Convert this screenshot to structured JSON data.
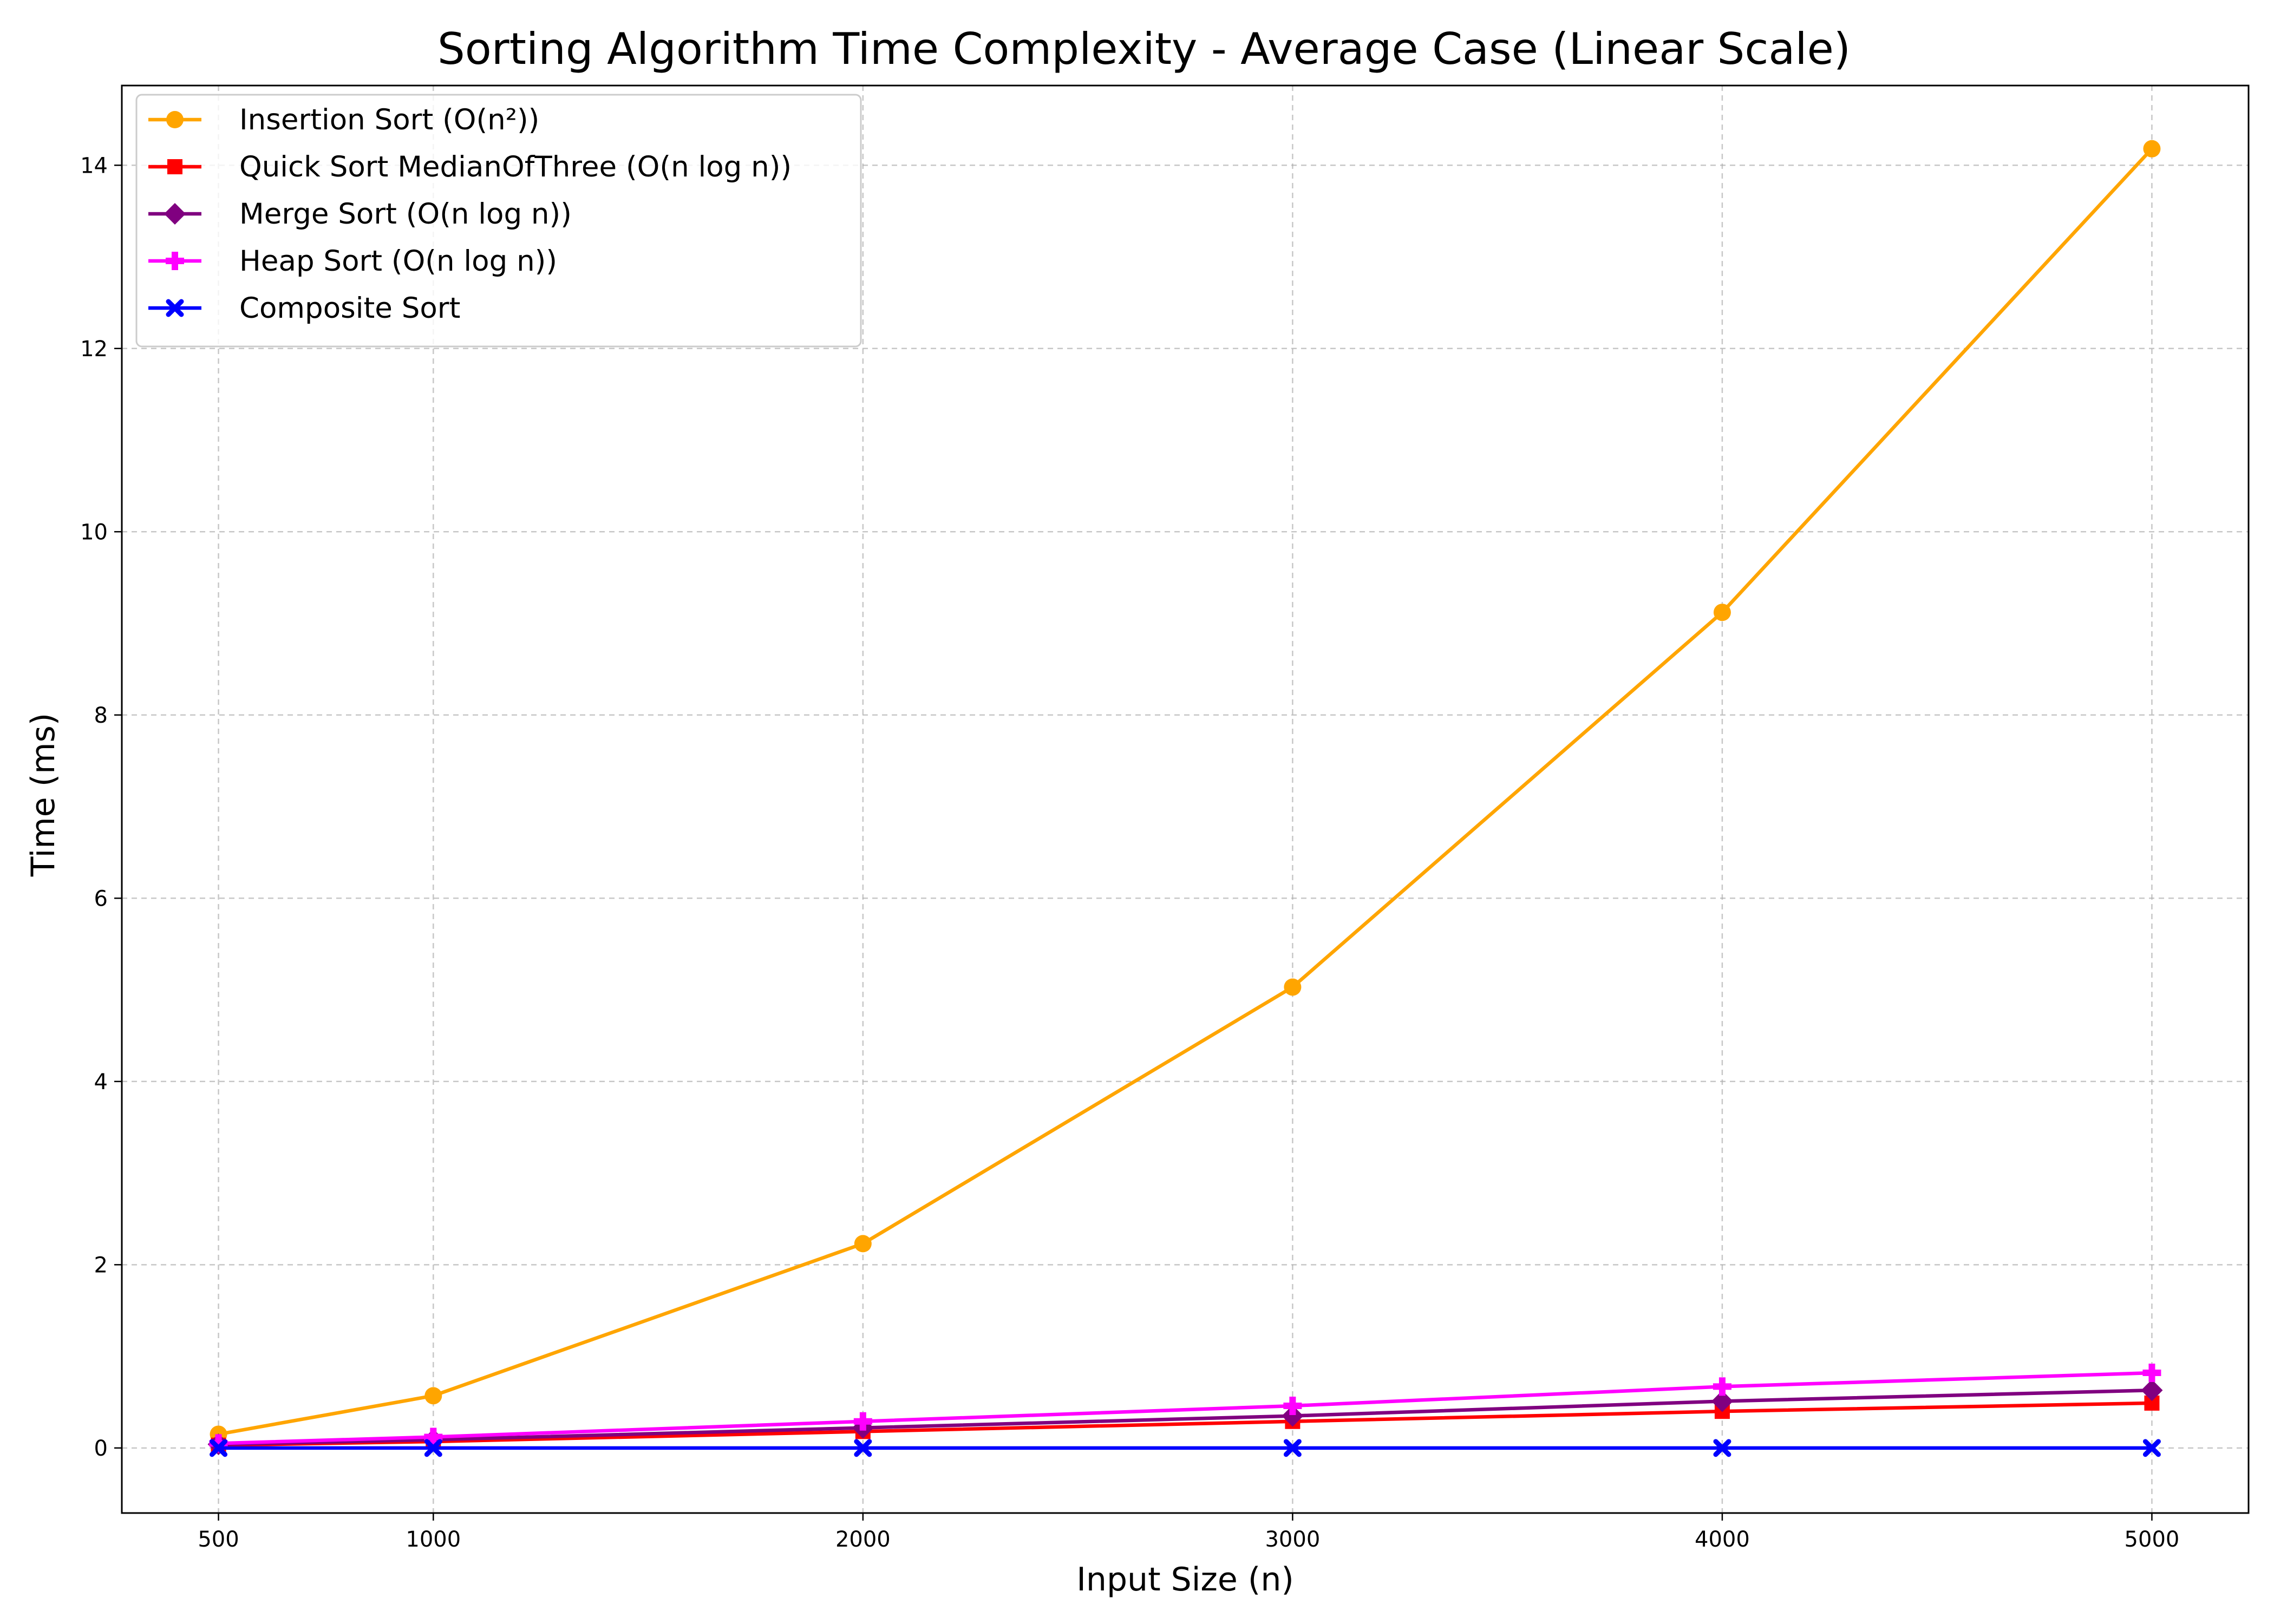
{
  "chart_data": {
    "type": "line",
    "title": "Sorting Algorithm Time Complexity - Average Case (Linear Scale)",
    "xlabel": "Input Size (n)",
    "ylabel": "Time (ms)",
    "x": [
      500,
      1000,
      2000,
      3000,
      4000,
      5000
    ],
    "xticks": [
      "500",
      "1000",
      "2000",
      "3000",
      "4000",
      "5000"
    ],
    "yticks": [
      "0",
      "2",
      "4",
      "6",
      "8",
      "10",
      "12",
      "14"
    ],
    "xlim": [
      275,
      5225
    ],
    "ylim": [
      -0.71,
      14.87
    ],
    "grid": true,
    "legend_position": "top-left",
    "series": [
      {
        "name": "Insertion Sort (O(n²))",
        "color": "#FFA500",
        "marker": "circle",
        "values": [
          0.15,
          0.57,
          2.23,
          5.03,
          9.12,
          14.18
        ]
      },
      {
        "name": "Quick Sort MedianOfThree (O(n log n))",
        "color": "#FF0000",
        "marker": "square",
        "values": [
          0.03,
          0.07,
          0.18,
          0.29,
          0.4,
          0.49
        ]
      },
      {
        "name": "Merge Sort (O(n log n))",
        "color": "#800080",
        "marker": "diamond",
        "values": [
          0.04,
          0.09,
          0.22,
          0.35,
          0.51,
          0.63
        ]
      },
      {
        "name": "Heap Sort (O(n log n))",
        "color": "#FF00FF",
        "marker": "plus",
        "values": [
          0.05,
          0.12,
          0.29,
          0.46,
          0.67,
          0.82
        ]
      },
      {
        "name": "Composite Sort",
        "color": "#0000FF",
        "marker": "x",
        "values": [
          0.0,
          0.0,
          0.0,
          0.0,
          0.0,
          0.0
        ]
      }
    ]
  }
}
